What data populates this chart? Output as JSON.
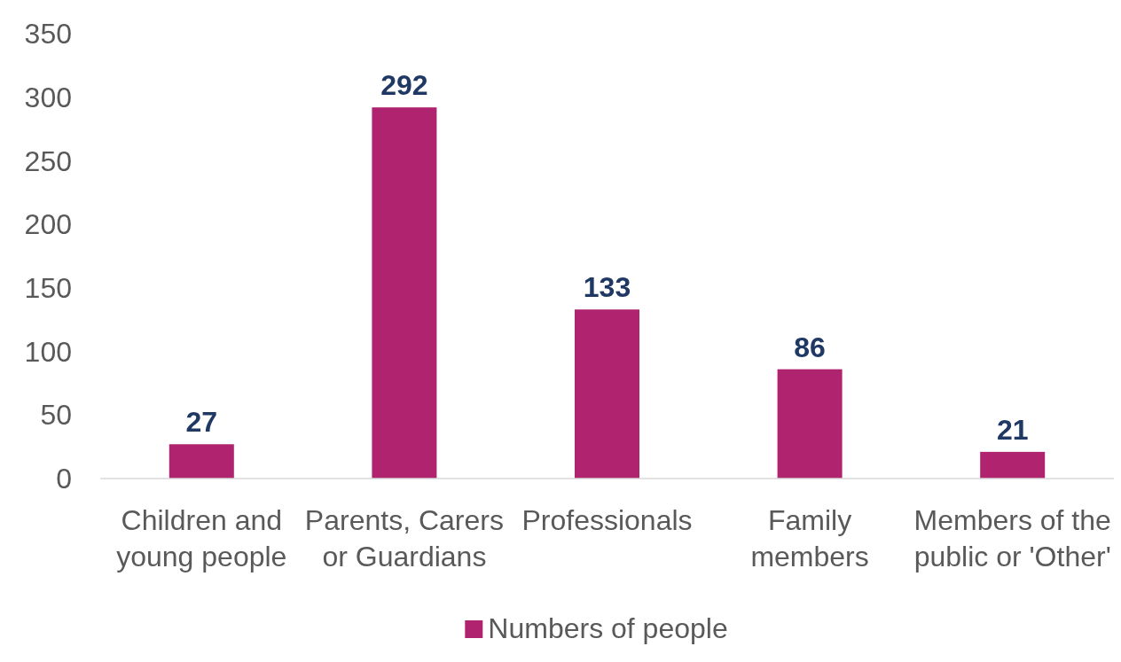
{
  "chart_data": {
    "type": "bar",
    "categories": [
      "Children and young people",
      "Parents, Carers or Guardians",
      "Professionals",
      "Family members",
      "Members of the public or 'Other'"
    ],
    "series": [
      {
        "name": "Numbers of people",
        "color": "#b0236e",
        "values": [
          27,
          292,
          133,
          86,
          21
        ]
      }
    ],
    "ylim": [
      0,
      350
    ],
    "yticks": [
      0,
      50,
      100,
      150,
      200,
      250,
      300,
      350
    ],
    "grid": false,
    "legend": "bottom",
    "data_labels": true
  }
}
